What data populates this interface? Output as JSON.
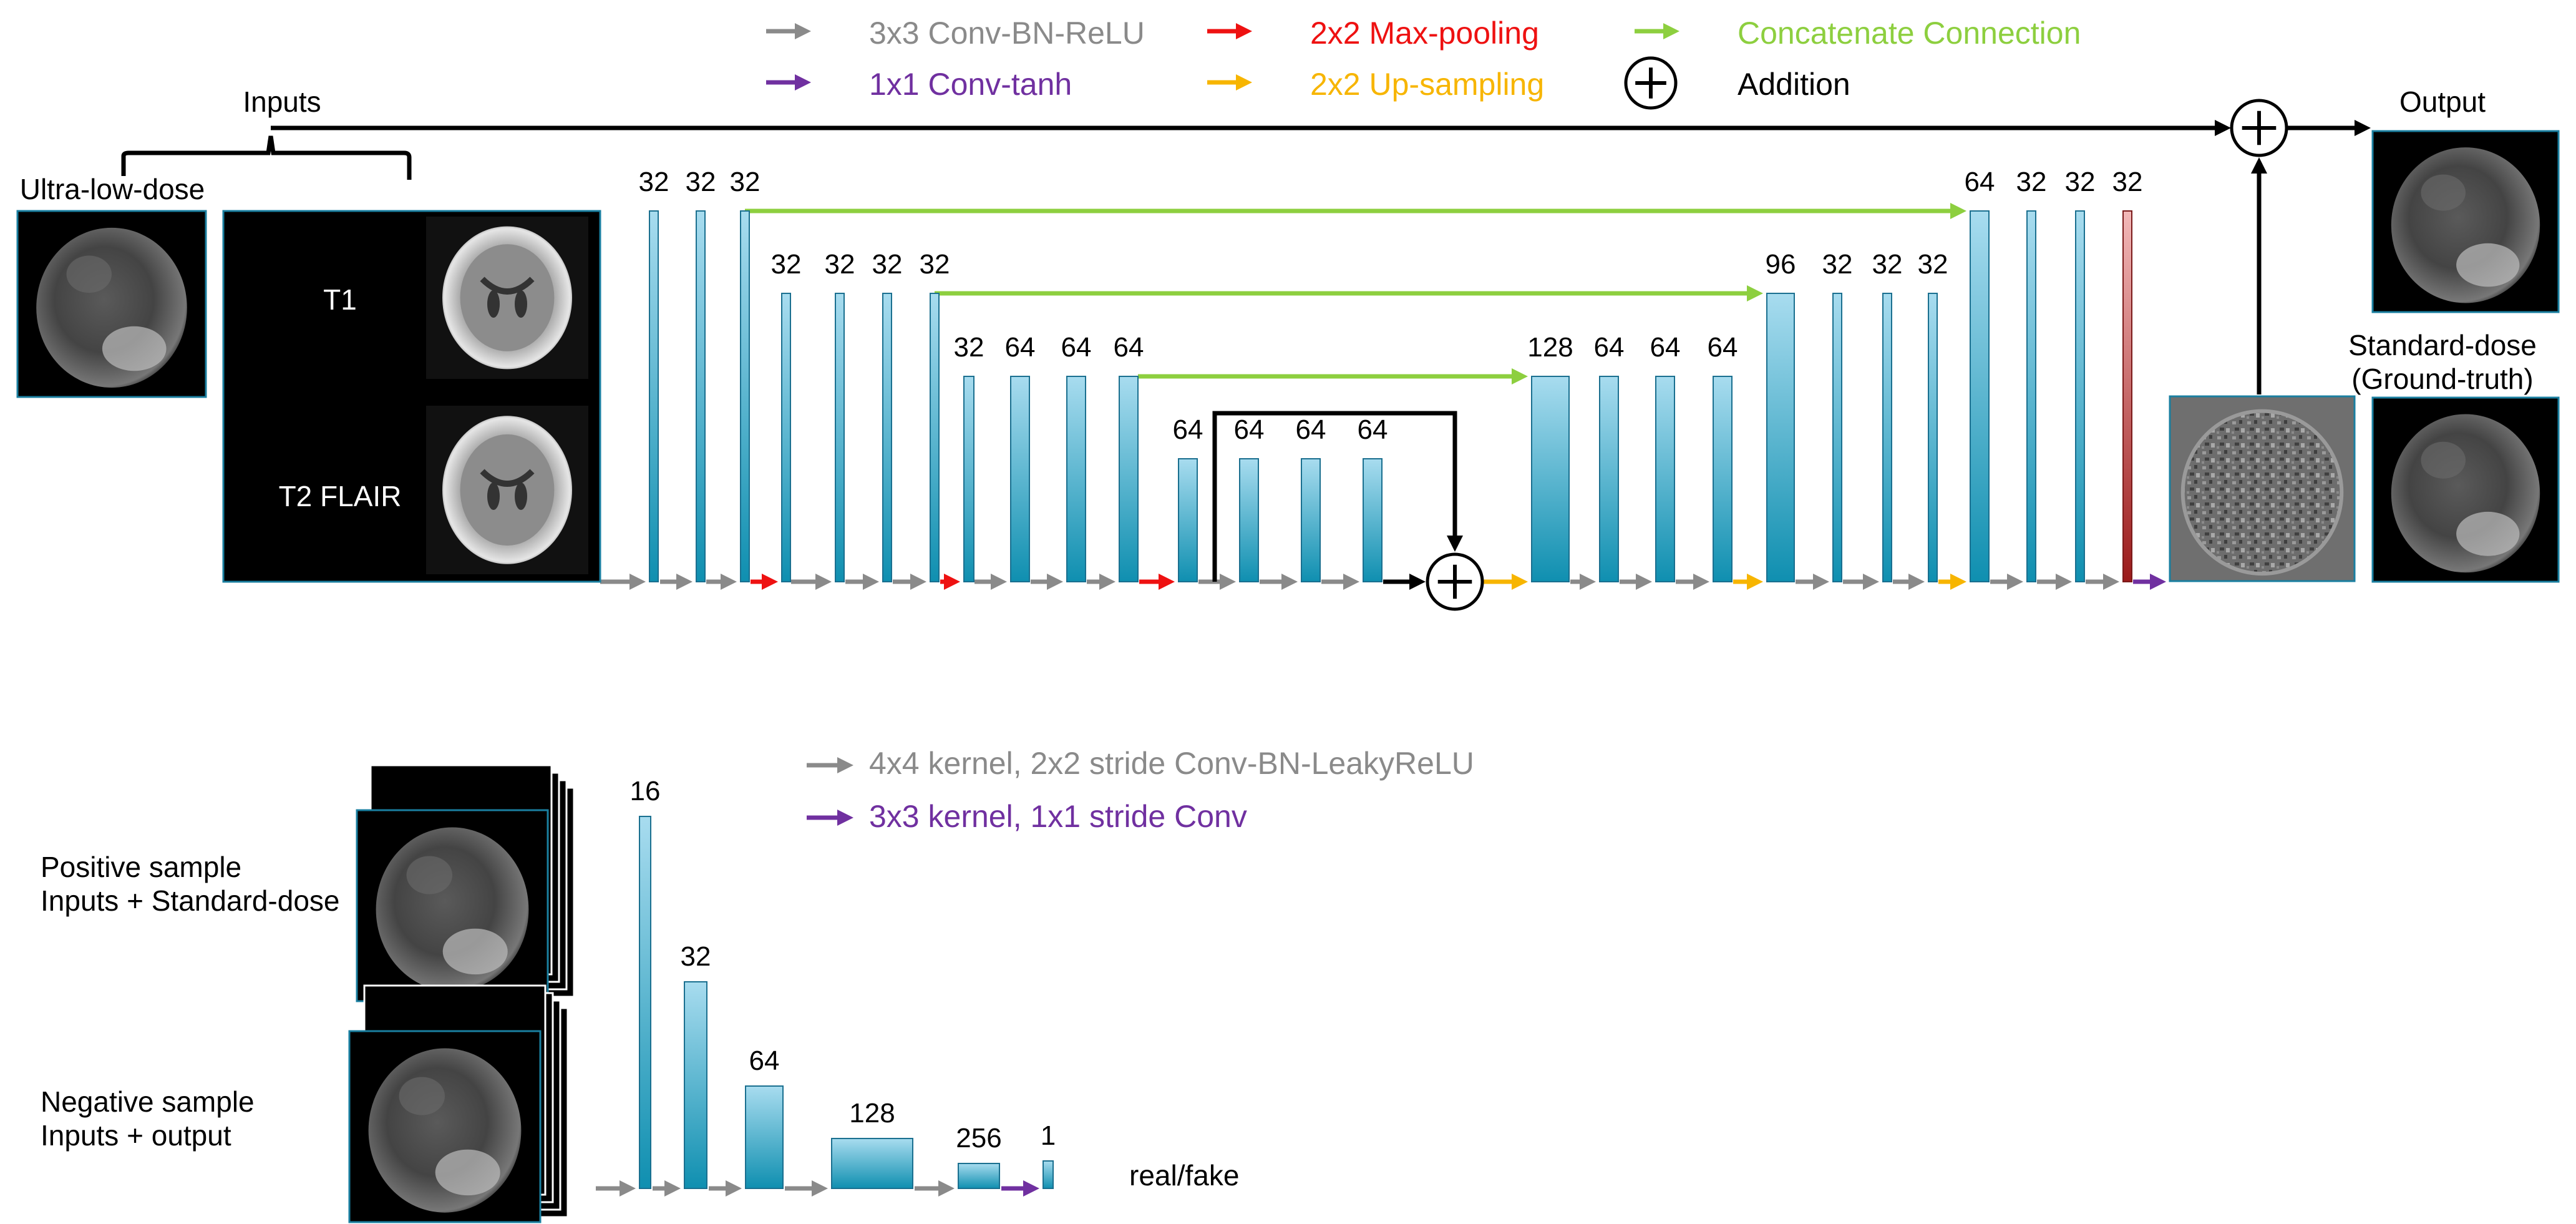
{
  "colors": {
    "conv": "#8a8a8a",
    "pool": "#ee1111",
    "concat": "#8dcf3f",
    "tanh": "#7030a0",
    "up": "#f7b500",
    "black": "#000000",
    "bar_top": "#a8dcef",
    "bar_bottom": "#0f8fb0",
    "bar_stroke": "#1a6f8f",
    "final_top": "#f2b8b8",
    "final_bottom": "#9b1b1b"
  },
  "legend_top": [
    {
      "label": "3x3 Conv-BN-ReLU",
      "color_key": "conv"
    },
    {
      "label": "2x2 Max-pooling",
      "color_key": "pool"
    },
    {
      "label": "Concatenate Connection",
      "color_key": "concat"
    },
    {
      "label": "1x1 Conv-tanh",
      "color_key": "tanh"
    },
    {
      "label": "2x2 Up-sampling",
      "color_key": "up"
    },
    {
      "label": "Addition",
      "color_key": "black"
    }
  ],
  "generator": {
    "inputs_label": "Inputs",
    "ultra_low_dose_label": "Ultra-low-dose",
    "t1_label": "T1",
    "t2flair_label": "T2 FLAIR",
    "output_label": "Output",
    "ground_truth_label_line1": "Standard-dose",
    "ground_truth_label_line2": "(Ground-truth)",
    "channels": [
      "32",
      "32",
      "32",
      "32",
      "32",
      "32",
      "32",
      "32",
      "64",
      "64",
      "64",
      "64",
      "64",
      "64",
      "64",
      "128",
      "64",
      "64",
      "64",
      "96",
      "32",
      "32",
      "32",
      "64",
      "32",
      "32",
      "32"
    ]
  },
  "discriminator": {
    "legend": [
      {
        "label": "4x4 kernel, 2x2 stride Conv-BN-LeakyReLU",
        "color_key": "conv"
      },
      {
        "label": "3x3 kernel, 1x1 stride Conv",
        "color_key": "tanh"
      }
    ],
    "positive_label_line1": "Positive sample",
    "positive_label_line2": "Inputs + Standard-dose",
    "negative_label_line1": "Negative sample",
    "negative_label_line2": "Inputs + output",
    "channels": [
      "16",
      "32",
      "64",
      "128",
      "256",
      "1"
    ],
    "output_label": "real/fake"
  },
  "icons": {
    "plus": "circled-plus-icon",
    "brain": "brain-scan-icon"
  }
}
